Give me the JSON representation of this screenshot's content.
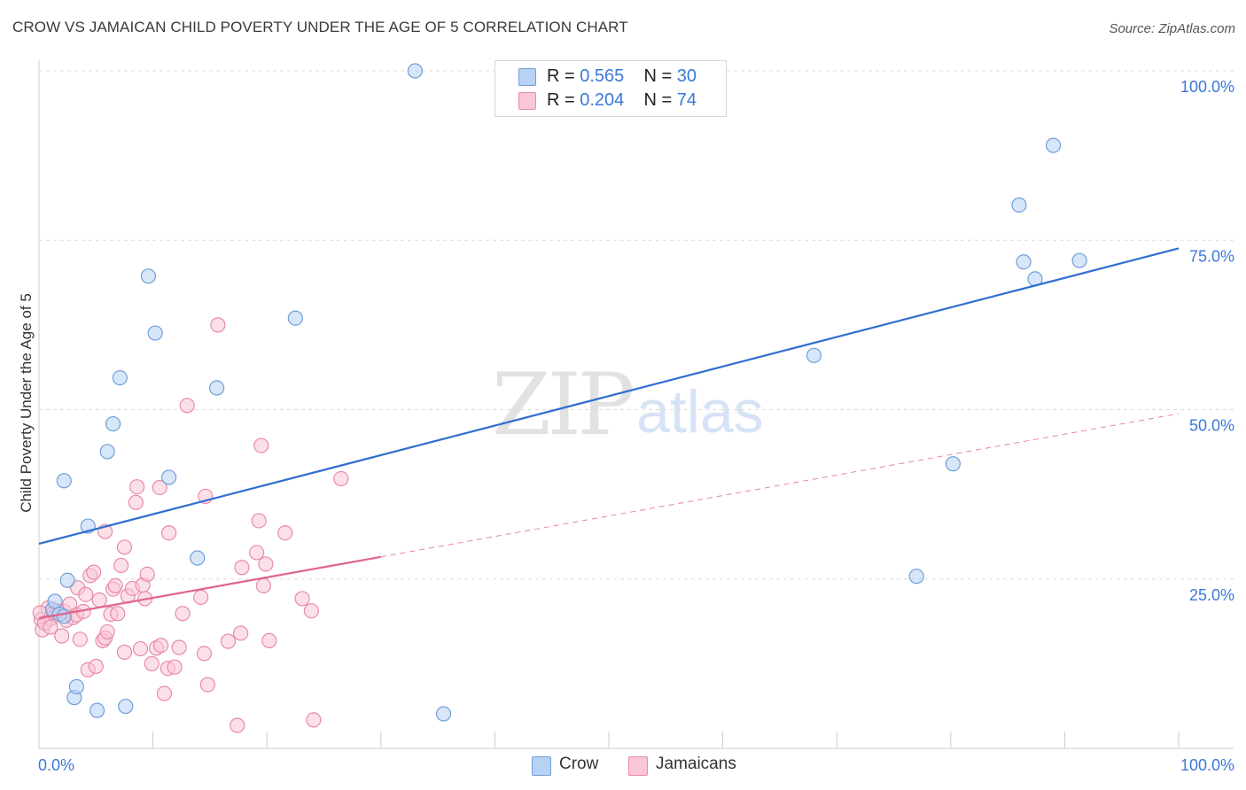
{
  "title": "CROW VS JAMAICAN CHILD POVERTY UNDER THE AGE OF 5 CORRELATION CHART",
  "source": "Source: ZipAtlas.com",
  "watermark": {
    "zip": "ZIP",
    "atlas": "atlas"
  },
  "legend": {
    "rows": [
      {
        "r_label": "R =",
        "r_value": "0.565",
        "n_label": "N =",
        "n_value": "30"
      },
      {
        "r_label": "R =",
        "r_value": "0.204",
        "n_label": "N =",
        "n_value": "74"
      }
    ]
  },
  "bottom_legend": {
    "crow": "Crow",
    "jamaicans": "Jamaicans"
  },
  "colors": {
    "crow_fill": "#b8d2f4",
    "crow_stroke": "#6f9fd8",
    "crow_line": "#2f6fd0",
    "jam_fill": "#f9c6d6",
    "jam_stroke": "#e88aa8",
    "jam_line": "#e0648e",
    "tick_label": "#3b78d8",
    "grid": "#dcdcdc"
  },
  "chart_data": {
    "type": "scatter",
    "title": "CROW VS JAMAICAN CHILD POVERTY UNDER THE AGE OF 5 CORRELATION CHART",
    "xlabel": "",
    "ylabel": "Child Poverty Under the Age of 5",
    "xlim": [
      0,
      100
    ],
    "ylim": [
      0,
      100
    ],
    "x_tick_labels": [
      "0.0%",
      "100.0%"
    ],
    "y_ticks": [
      25,
      50,
      75,
      100
    ],
    "y_tick_labels": [
      "25.0%",
      "50.0%",
      "75.0%",
      "100.0%"
    ],
    "grid": true,
    "legend_position": "top-center",
    "series": [
      {
        "name": "Crow",
        "r": 0.565,
        "n": 30,
        "trend": {
          "x": [
            0,
            100
          ],
          "y": [
            30.2,
            73.8
          ],
          "dashed_from": null
        },
        "points": [
          [
            1.2,
            20.5
          ],
          [
            1.4,
            21.7
          ],
          [
            1.8,
            19.8
          ],
          [
            2.2,
            19.5
          ],
          [
            2.2,
            39.5
          ],
          [
            2.5,
            24.8
          ],
          [
            3.1,
            7.5
          ],
          [
            3.3,
            9.1
          ],
          [
            4.3,
            32.8
          ],
          [
            5.1,
            5.6
          ],
          [
            6.0,
            43.8
          ],
          [
            6.5,
            47.9
          ],
          [
            7.1,
            54.7
          ],
          [
            7.6,
            6.2
          ],
          [
            9.6,
            69.7
          ],
          [
            10.2,
            61.3
          ],
          [
            11.4,
            40.0
          ],
          [
            13.9,
            28.1
          ],
          [
            15.6,
            53.2
          ],
          [
            22.5,
            63.5
          ],
          [
            33.0,
            100.0
          ],
          [
            35.5,
            5.1
          ],
          [
            68.0,
            58.0
          ],
          [
            77.0,
            25.4
          ],
          [
            80.2,
            42.0
          ],
          [
            86.0,
            80.2
          ],
          [
            86.4,
            71.8
          ],
          [
            87.4,
            69.3
          ],
          [
            89.0,
            89.0
          ],
          [
            91.3,
            72.0
          ]
        ]
      },
      {
        "name": "Jamaicans",
        "r": 0.204,
        "n": 74,
        "trend": {
          "x": [
            0,
            100
          ],
          "y": [
            19.2,
            49.4
          ],
          "dashed_from": 30
        },
        "points": [
          [
            0.2,
            19.0
          ],
          [
            0.3,
            17.5
          ],
          [
            0.8,
            20.7
          ],
          [
            1.1,
            19.2
          ],
          [
            1.3,
            20.1
          ],
          [
            1.6,
            20.3
          ],
          [
            2.0,
            16.6
          ],
          [
            2.2,
            20.2
          ],
          [
            2.4,
            18.9
          ],
          [
            2.7,
            21.3
          ],
          [
            3.0,
            19.3
          ],
          [
            3.3,
            19.7
          ],
          [
            3.4,
            23.7
          ],
          [
            3.6,
            16.1
          ],
          [
            3.9,
            20.2
          ],
          [
            4.1,
            22.7
          ],
          [
            4.3,
            11.6
          ],
          [
            4.5,
            25.5
          ],
          [
            4.8,
            26.0
          ],
          [
            5.0,
            12.1
          ],
          [
            5.3,
            21.9
          ],
          [
            5.6,
            15.9
          ],
          [
            5.8,
            16.3
          ],
          [
            5.8,
            32.0
          ],
          [
            6.0,
            17.2
          ],
          [
            6.3,
            19.8
          ],
          [
            6.5,
            23.5
          ],
          [
            6.7,
            24.0
          ],
          [
            6.9,
            19.9
          ],
          [
            7.2,
            27.0
          ],
          [
            7.5,
            14.2
          ],
          [
            7.5,
            29.7
          ],
          [
            7.8,
            22.5
          ],
          [
            8.2,
            23.6
          ],
          [
            8.5,
            36.3
          ],
          [
            8.6,
            38.6
          ],
          [
            8.9,
            14.7
          ],
          [
            9.1,
            24.1
          ],
          [
            9.3,
            22.1
          ],
          [
            9.5,
            25.7
          ],
          [
            9.9,
            12.5
          ],
          [
            10.3,
            14.8
          ],
          [
            10.6,
            38.5
          ],
          [
            10.7,
            15.2
          ],
          [
            11.0,
            8.1
          ],
          [
            11.3,
            11.8
          ],
          [
            11.4,
            31.8
          ],
          [
            11.9,
            12.0
          ],
          [
            12.3,
            14.9
          ],
          [
            12.6,
            19.9
          ],
          [
            13.0,
            50.6
          ],
          [
            14.2,
            22.3
          ],
          [
            14.5,
            14.0
          ],
          [
            14.6,
            37.2
          ],
          [
            14.8,
            9.4
          ],
          [
            15.7,
            62.5
          ],
          [
            16.6,
            15.8
          ],
          [
            17.4,
            3.4
          ],
          [
            17.7,
            17.0
          ],
          [
            17.8,
            26.7
          ],
          [
            19.1,
            28.9
          ],
          [
            19.3,
            33.6
          ],
          [
            19.5,
            44.7
          ],
          [
            19.7,
            24.0
          ],
          [
            19.9,
            27.2
          ],
          [
            20.2,
            15.9
          ],
          [
            21.6,
            31.8
          ],
          [
            23.1,
            22.1
          ],
          [
            23.9,
            20.3
          ],
          [
            24.1,
            4.2
          ],
          [
            26.5,
            39.8
          ],
          [
            0.1,
            20.0
          ],
          [
            0.5,
            18.5
          ],
          [
            1.0,
            17.9
          ]
        ]
      }
    ]
  }
}
